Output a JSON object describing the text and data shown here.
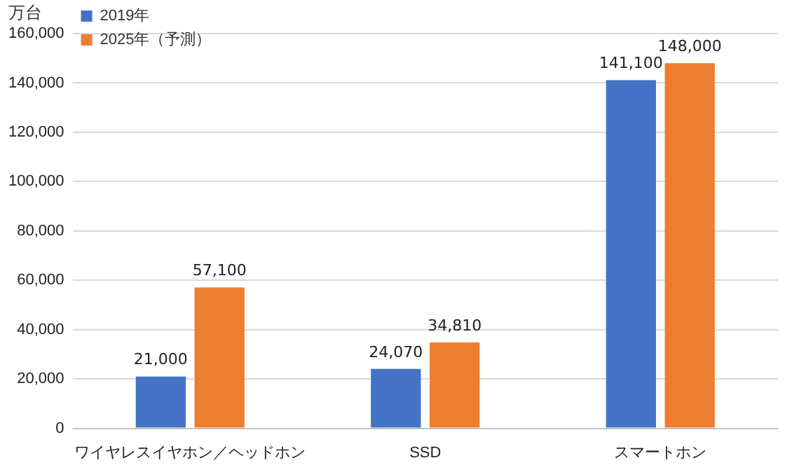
{
  "chart_data": {
    "type": "bar",
    "ylabel": "万台",
    "categories": [
      "ワイヤレスイヤホン／ヘッドホン",
      "SSD",
      "スマートホン"
    ],
    "series": [
      {
        "name": "2019年",
        "color": "#4472c4",
        "values": [
          21000,
          24070,
          141100
        ],
        "value_labels": [
          "21,000",
          "24,070",
          "141,100"
        ]
      },
      {
        "name": "2025年（予測）",
        "color": "#ed7d31",
        "values": [
          57100,
          34810,
          148000
        ],
        "value_labels": [
          "57,100",
          "34,810",
          "148,000"
        ]
      }
    ],
    "ylim": [
      0,
      160000
    ],
    "yticks": [
      {
        "value": 0,
        "label": "0"
      },
      {
        "value": 20000,
        "label": "20,000"
      },
      {
        "value": 40000,
        "label": "40,000"
      },
      {
        "value": 60000,
        "label": "60,000"
      },
      {
        "value": 80000,
        "label": "80,000"
      },
      {
        "value": 100000,
        "label": "100,000"
      },
      {
        "value": 120000,
        "label": "120,000"
      },
      {
        "value": 140000,
        "label": "140,000"
      },
      {
        "value": 160000,
        "label": "160,000"
      }
    ],
    "grid": "y",
    "legend": "top left"
  }
}
